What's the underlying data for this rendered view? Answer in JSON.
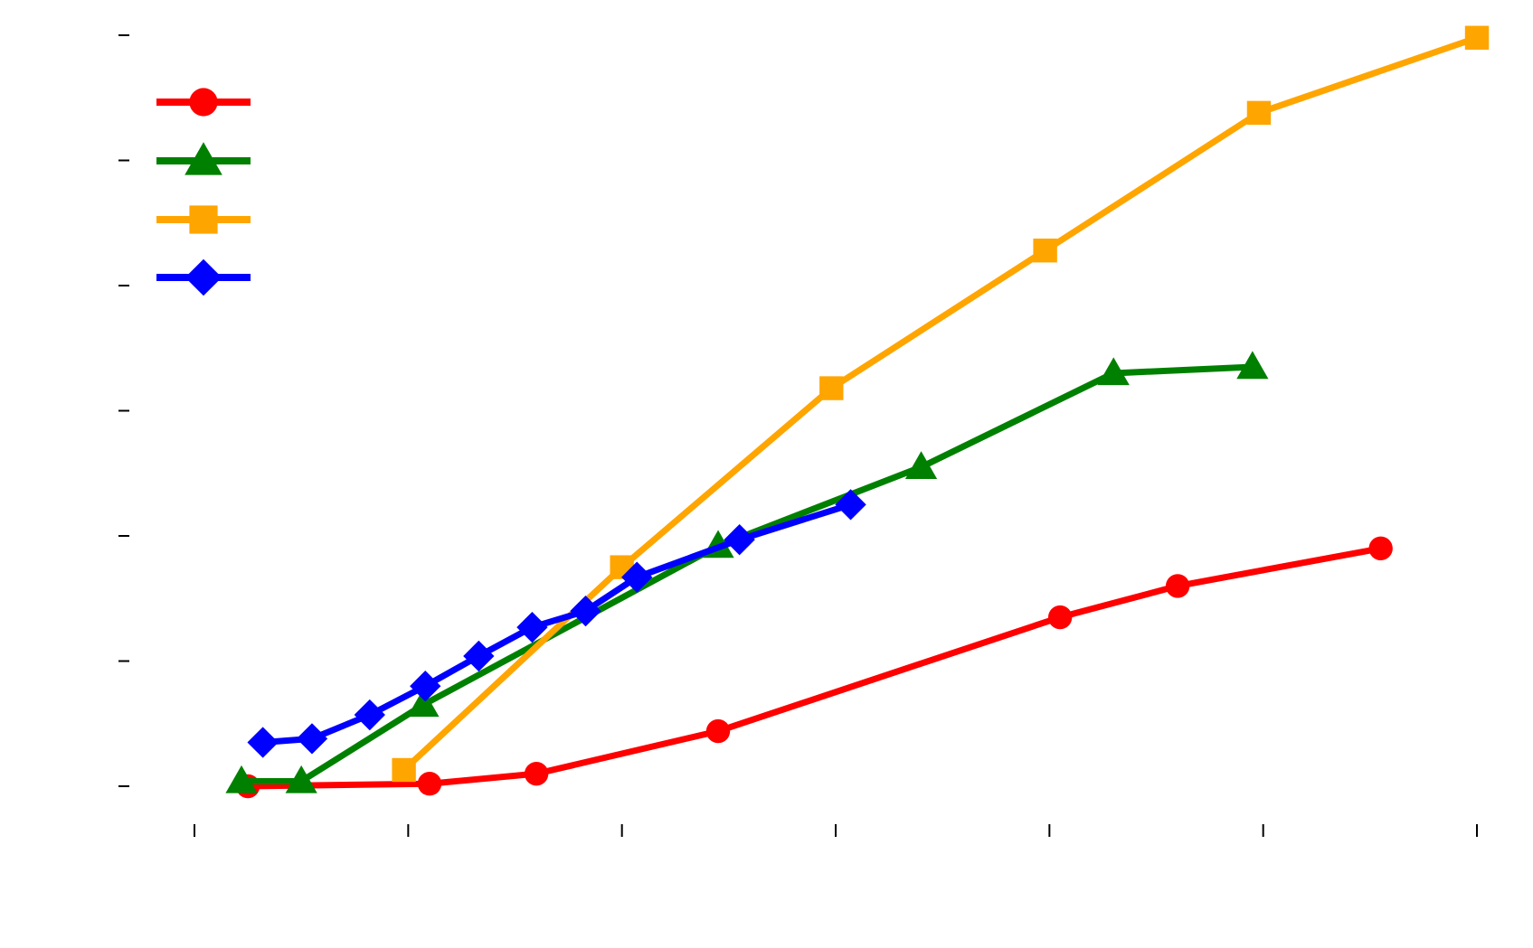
{
  "chart_data": {
    "type": "line",
    "title": "",
    "xlabel": "",
    "ylabel": "",
    "xlim": [
      -0.2,
      6.0
    ],
    "ylim": [
      -0.1,
      6.2
    ],
    "x_ticks": [
      0,
      1,
      2,
      3,
      4,
      5,
      6
    ],
    "y_ticks": [
      0,
      1,
      2,
      3,
      4,
      5,
      6
    ],
    "grid": false,
    "legend": "top-left",
    "series": [
      {
        "color": "#ff0000",
        "marker": "circle",
        "points": [
          [
            0.25,
            0.0
          ],
          [
            1.1,
            0.02
          ],
          [
            1.6,
            0.1
          ],
          [
            2.45,
            0.44
          ],
          [
            4.05,
            1.35
          ],
          [
            4.6,
            1.6
          ],
          [
            5.55,
            1.9
          ]
        ]
      },
      {
        "color": "#008000",
        "marker": "triangle",
        "points": [
          [
            0.22,
            0.04
          ],
          [
            0.5,
            0.04
          ],
          [
            1.07,
            0.65
          ],
          [
            2.45,
            1.92
          ],
          [
            3.4,
            2.55
          ],
          [
            4.3,
            3.3
          ],
          [
            4.95,
            3.35
          ]
        ]
      },
      {
        "color": "#ffa500",
        "marker": "square",
        "points": [
          [
            0.98,
            0.13
          ],
          [
            2.0,
            1.75
          ],
          [
            2.98,
            3.18
          ],
          [
            3.98,
            4.28
          ],
          [
            4.98,
            5.38
          ],
          [
            6.0,
            5.98
          ]
        ]
      },
      {
        "color": "#0000ff",
        "marker": "diamond",
        "points": [
          [
            0.32,
            0.35
          ],
          [
            0.55,
            0.38
          ],
          [
            0.82,
            0.57
          ],
          [
            1.08,
            0.8
          ],
          [
            1.33,
            1.04
          ],
          [
            1.58,
            1.27
          ],
          [
            1.83,
            1.4
          ],
          [
            2.07,
            1.67
          ],
          [
            2.55,
            1.97
          ],
          [
            3.07,
            2.25
          ]
        ]
      }
    ]
  }
}
